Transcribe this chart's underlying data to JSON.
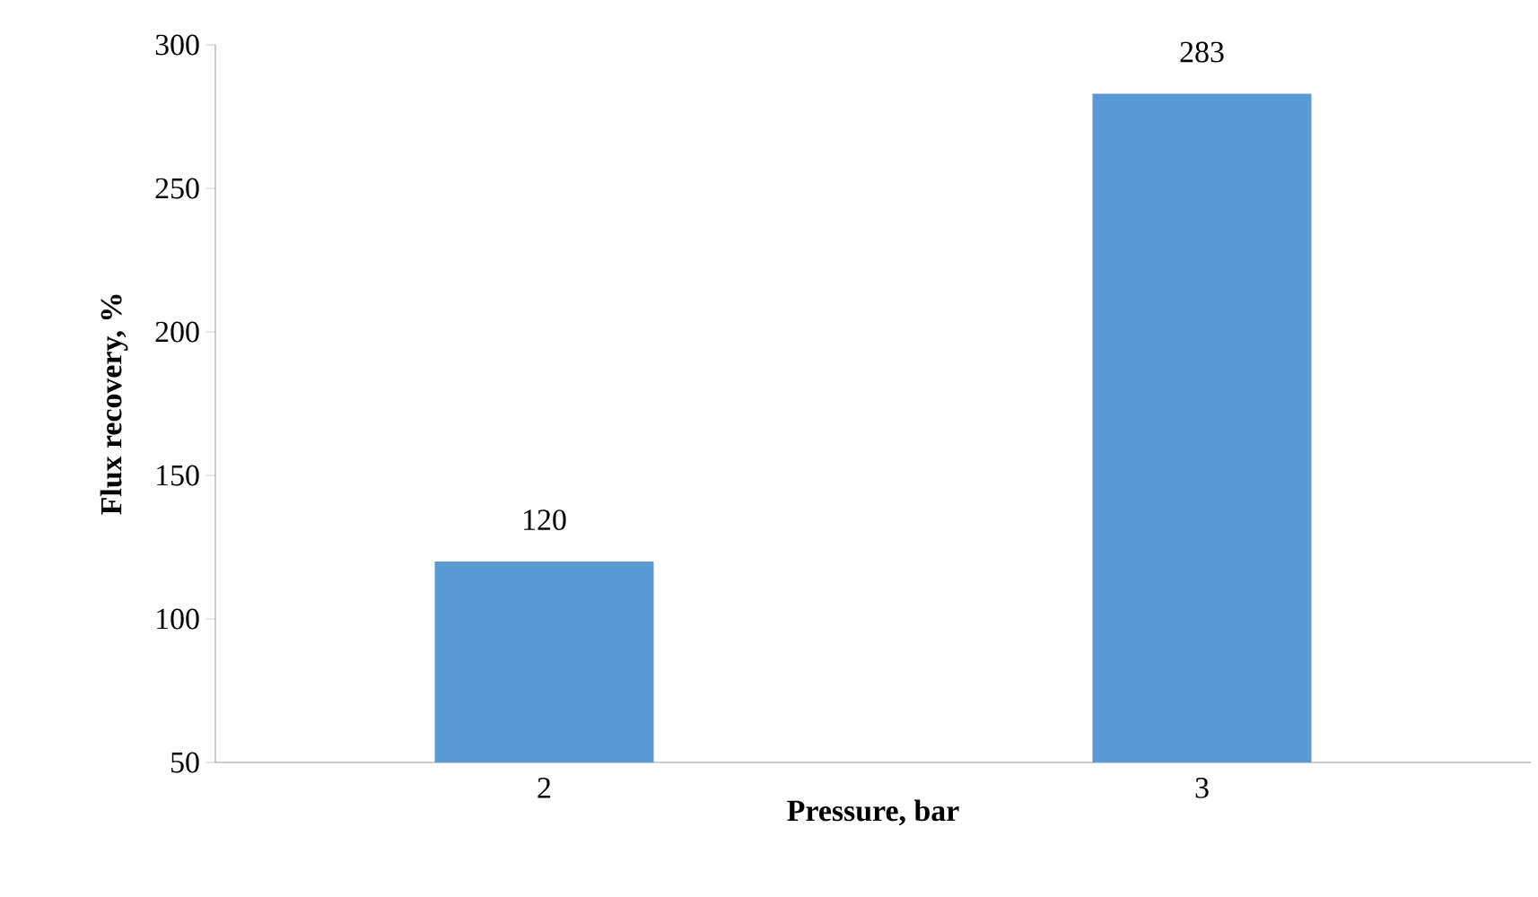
{
  "chart_data": {
    "type": "bar",
    "xlabel": "Pressure, bar",
    "ylabel": "Flux recovery, %",
    "categories": [
      "2",
      "3"
    ],
    "values": [
      120,
      283
    ],
    "color": "#5b9bd5",
    "ylim": [
      50,
      300
    ],
    "yticks": [
      50,
      100,
      150,
      200,
      250,
      300
    ],
    "data_labels": true
  }
}
